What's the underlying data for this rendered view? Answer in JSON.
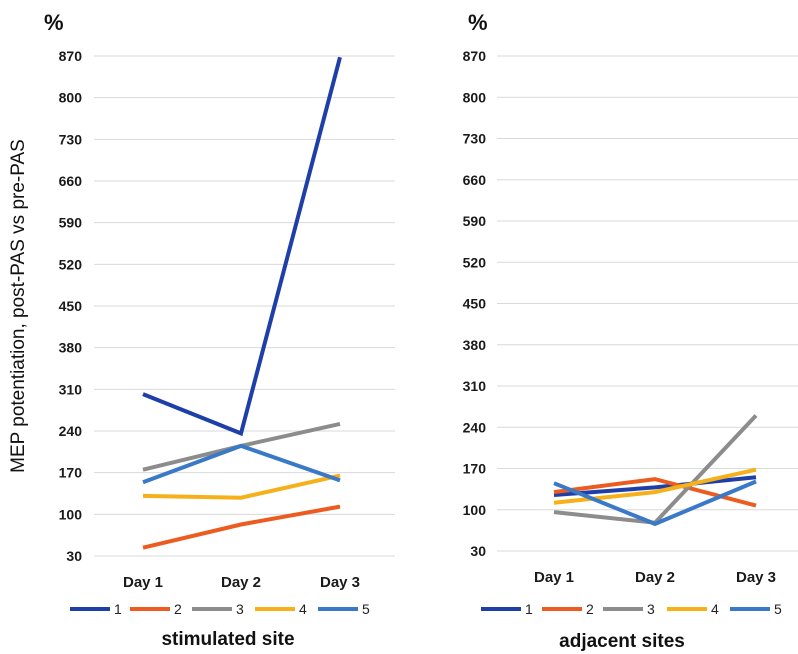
{
  "chart_data": [
    {
      "type": "line",
      "title": "",
      "caption": "stimulated site",
      "unit_label": "%",
      "ylabel": "MEP potentiation, post-PAS vs pre-PAS",
      "xlabel": "",
      "categories": [
        "Day 1",
        "Day 2",
        "Day 3"
      ],
      "yticks": [
        "870",
        "800",
        "730",
        "660",
        "590",
        "520",
        "450",
        "380",
        "310",
        "240",
        "170",
        "100",
        "30"
      ],
      "ylim": [
        30,
        870
      ],
      "grid": true,
      "legend_position": "bottom",
      "series": [
        {
          "name": "1",
          "color": "#1F3FA8",
          "values": [
            302,
            236,
            868
          ]
        },
        {
          "name": "2",
          "color": "#EC5B1F",
          "values": [
            44,
            83,
            113
          ]
        },
        {
          "name": "3",
          "color": "#8C8C8C",
          "values": [
            175,
            215,
            252
          ]
        },
        {
          "name": "4",
          "color": "#F5B01A",
          "values": [
            131,
            128,
            165
          ]
        },
        {
          "name": "5",
          "color": "#3A78C8",
          "values": [
            154,
            215,
            157
          ]
        }
      ]
    },
    {
      "type": "line",
      "title": "",
      "caption": "adjacent sites",
      "unit_label": "%",
      "ylabel": "",
      "xlabel": "",
      "categories": [
        "Day 1",
        "Day 2",
        "Day 3"
      ],
      "yticks": [
        "870",
        "800",
        "730",
        "660",
        "590",
        "520",
        "450",
        "380",
        "310",
        "240",
        "170",
        "100",
        "30"
      ],
      "ylim": [
        30,
        870
      ],
      "grid": true,
      "legend_position": "bottom",
      "series": [
        {
          "name": "1",
          "color": "#1F3FA8",
          "values": [
            125,
            138,
            155
          ]
        },
        {
          "name": "2",
          "color": "#EC5B1F",
          "values": [
            130,
            152,
            107
          ]
        },
        {
          "name": "3",
          "color": "#8C8C8C",
          "values": [
            96,
            78,
            260
          ]
        },
        {
          "name": "4",
          "color": "#F5B01A",
          "values": [
            112,
            130,
            168
          ]
        },
        {
          "name": "5",
          "color": "#3A78C8",
          "values": [
            145,
            76,
            148
          ]
        }
      ]
    }
  ]
}
